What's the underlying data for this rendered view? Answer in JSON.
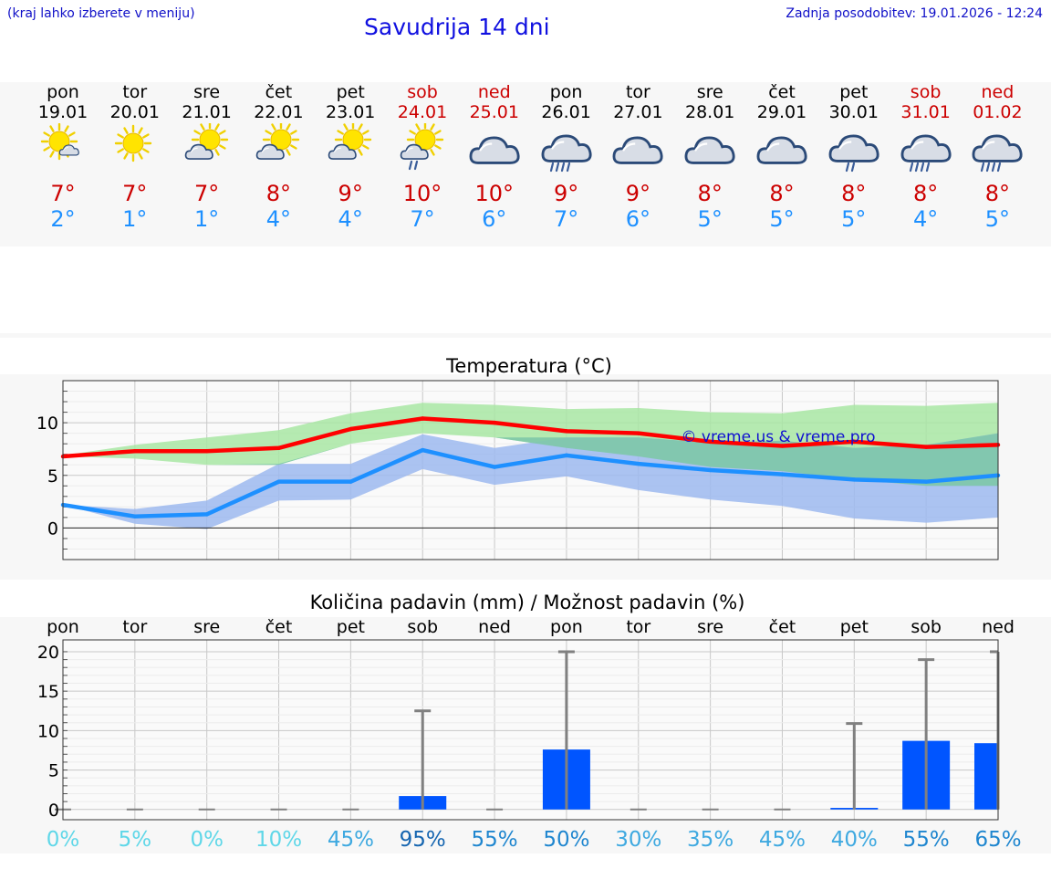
{
  "header": {
    "note": "(kraj lahko izberete v meniju)",
    "title": "Savudrija 14 dni",
    "updated": "Zadnja posodobitev: 19.01.2026 - 12:24"
  },
  "days": [
    {
      "name": "pon",
      "date": "19.01",
      "weekend": false,
      "icon": "sun-light-cloud-icon",
      "max": "7°",
      "min": "2°"
    },
    {
      "name": "tor",
      "date": "20.01",
      "weekend": false,
      "icon": "sun-icon",
      "max": "7°",
      "min": "1°"
    },
    {
      "name": "sre",
      "date": "21.01",
      "weekend": false,
      "icon": "sun-cloud-icon",
      "max": "7°",
      "min": "1°"
    },
    {
      "name": "čet",
      "date": "22.01",
      "weekend": false,
      "icon": "sun-cloud-icon",
      "max": "8°",
      "min": "4°"
    },
    {
      "name": "pet",
      "date": "23.01",
      "weekend": false,
      "icon": "sun-cloud-icon",
      "max": "9°",
      "min": "4°"
    },
    {
      "name": "sob",
      "date": "24.01",
      "weekend": true,
      "icon": "sun-cloud-light-rain-icon",
      "max": "10°",
      "min": "7°"
    },
    {
      "name": "ned",
      "date": "25.01",
      "weekend": true,
      "icon": "cloud-icon",
      "max": "10°",
      "min": "6°"
    },
    {
      "name": "pon",
      "date": "26.01",
      "weekend": false,
      "icon": "cloud-heavy-rain-icon",
      "max": "9°",
      "min": "7°"
    },
    {
      "name": "tor",
      "date": "27.01",
      "weekend": false,
      "icon": "cloud-icon",
      "max": "9°",
      "min": "6°"
    },
    {
      "name": "sre",
      "date": "28.01",
      "weekend": false,
      "icon": "cloud-icon",
      "max": "8°",
      "min": "5°"
    },
    {
      "name": "čet",
      "date": "29.01",
      "weekend": false,
      "icon": "cloud-icon",
      "max": "8°",
      "min": "5°"
    },
    {
      "name": "pet",
      "date": "30.01",
      "weekend": false,
      "icon": "cloud-light-rain-icon",
      "max": "8°",
      "min": "5°"
    },
    {
      "name": "sob",
      "date": "31.01",
      "weekend": true,
      "icon": "cloud-heavy-rain-icon",
      "max": "8°",
      "min": "4°"
    },
    {
      "name": "ned",
      "date": "01.02",
      "weekend": true,
      "icon": "cloud-heavy-rain-icon",
      "max": "8°",
      "min": "5°"
    }
  ],
  "colors": {
    "max_line": "#ff0000",
    "min_line": "#1e90ff",
    "max_band": "#a8e6a3",
    "min_band": "#9cb8ee",
    "overlap_band": "#7ec8a8",
    "bar": "#0055ff",
    "whisker": "#808080",
    "text_red": "#cc0000",
    "text_blue": "#1e90ff"
  },
  "chart_data": [
    {
      "type": "line",
      "title": "Temperatura (°C)",
      "x": [
        "19.01",
        "20.01",
        "21.01",
        "22.01",
        "23.01",
        "24.01",
        "25.01",
        "26.01",
        "27.01",
        "28.01",
        "29.01",
        "30.01",
        "31.01",
        "01.02"
      ],
      "ylim": [
        -3,
        14
      ],
      "yticks": [
        0,
        5,
        10
      ],
      "grid": true,
      "watermark": "© vreme.us & vreme.pro",
      "series": [
        {
          "name": "max",
          "values": [
            6.8,
            7.3,
            7.3,
            7.6,
            9.4,
            10.4,
            10.0,
            9.2,
            9.0,
            8.2,
            7.8,
            8.2,
            7.7,
            7.9
          ],
          "band_low": [
            6.8,
            6.6,
            6.0,
            6.0,
            8.0,
            9.0,
            8.6,
            7.6,
            6.8,
            5.8,
            5.4,
            4.6,
            4.0,
            4.0
          ],
          "band_high": [
            6.9,
            7.9,
            8.6,
            9.3,
            10.9,
            11.9,
            11.7,
            11.3,
            11.4,
            11.0,
            10.9,
            11.7,
            11.6,
            11.9
          ]
        },
        {
          "name": "min",
          "values": [
            2.2,
            1.1,
            1.3,
            4.4,
            4.4,
            7.4,
            5.8,
            6.9,
            6.1,
            5.5,
            5.1,
            4.6,
            4.4,
            5.0
          ],
          "band_low": [
            2.2,
            0.4,
            -0.1,
            2.6,
            2.7,
            5.6,
            4.1,
            4.9,
            3.6,
            2.7,
            2.1,
            0.9,
            0.5,
            1.0
          ],
          "band_high": [
            2.2,
            1.8,
            2.6,
            6.1,
            6.1,
            8.9,
            7.6,
            8.6,
            8.6,
            8.1,
            8.3,
            7.6,
            7.9,
            9.0
          ]
        }
      ]
    },
    {
      "type": "bar",
      "title": "Količina padavin (mm) / Možnost padavin (%)",
      "categories": [
        "pon",
        "tor",
        "sre",
        "čet",
        "pet",
        "sob",
        "ned",
        "pon",
        "tor",
        "sre",
        "čet",
        "pet",
        "sob",
        "ned"
      ],
      "ylim": [
        -1.3,
        21.5
      ],
      "yticks": [
        0,
        5,
        10,
        15,
        20
      ],
      "grid": true,
      "values": [
        0,
        0,
        0,
        0,
        0,
        1.7,
        0,
        7.6,
        0,
        0,
        0,
        0.2,
        8.7,
        8.4
      ],
      "whisker_max": [
        0,
        0,
        0,
        0,
        0,
        12.5,
        0,
        20.0,
        0,
        0,
        0,
        10.9,
        19.0,
        20.0
      ],
      "chance": [
        "0%",
        "5%",
        "0%",
        "10%",
        "45%",
        "95%",
        "55%",
        "50%",
        "30%",
        "35%",
        "45%",
        "40%",
        "55%",
        "65%"
      ],
      "chance_colors": [
        "#5fd7e8",
        "#5fd7e8",
        "#5fd7e8",
        "#5fd7e8",
        "#3fa9e0",
        "#1565b0",
        "#1f86cf",
        "#1f86cf",
        "#3fa9e0",
        "#3fa9e0",
        "#3fa9e0",
        "#3fa9e0",
        "#1f86cf",
        "#1f86cf"
      ]
    }
  ]
}
